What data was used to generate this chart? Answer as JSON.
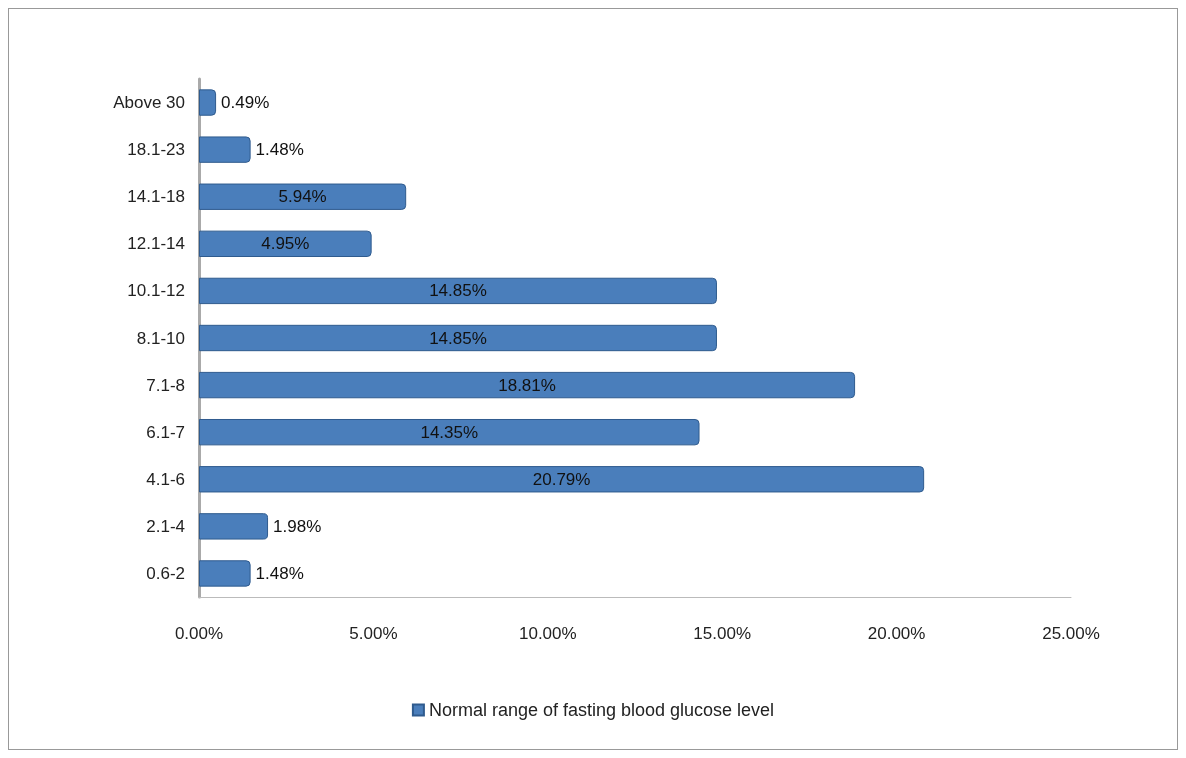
{
  "chart_data": {
    "type": "bar",
    "orientation": "horizontal",
    "categories": [
      "Above 30",
      "18.1-23",
      "14.1-18",
      "12.1-14",
      "10.1-12",
      "8.1-10",
      "7.1-8",
      "6.1-7",
      "4.1-6",
      "2.1-4",
      "0.6-2"
    ],
    "series": [
      {
        "name": "Normal range of fasting blood glucose level",
        "color": "#4a7ebb",
        "values": [
          0.49,
          1.48,
          5.94,
          4.95,
          14.85,
          14.85,
          18.81,
          14.35,
          20.79,
          1.98,
          1.48
        ],
        "value_labels": [
          "0.49%",
          "1.48%",
          "5.94%",
          "4.95%",
          "14.85%",
          "14.85%",
          "18.81%",
          "14.35%",
          "20.79%",
          "1.98%",
          "1.48%"
        ]
      }
    ],
    "xlim": [
      0,
      25
    ],
    "xticks": [
      {
        "value": 0,
        "label": "0.00%"
      },
      {
        "value": 5,
        "label": "5.00%"
      },
      {
        "value": 10,
        "label": "10.00%"
      },
      {
        "value": 15,
        "label": "15.00%"
      },
      {
        "value": 20,
        "label": "20.00%"
      },
      {
        "value": 25,
        "label": "25.00%"
      }
    ],
    "grid": false,
    "legend": "bottom"
  }
}
